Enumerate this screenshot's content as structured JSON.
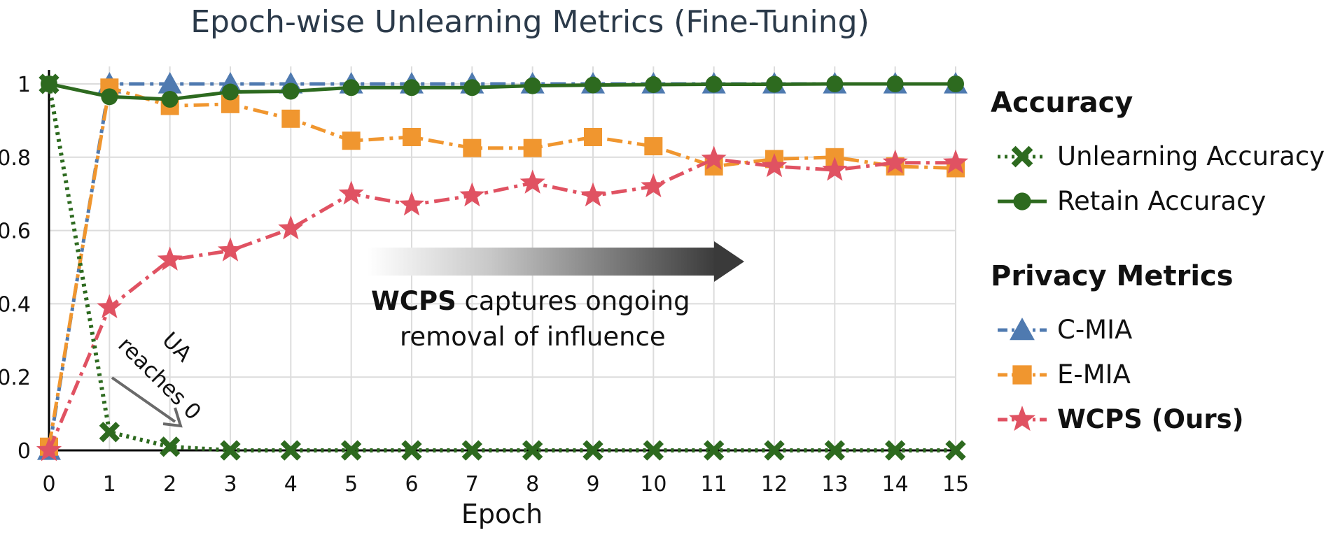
{
  "chart_data": {
    "type": "line",
    "title": "Epoch-wise Unlearning Metrics (Fine-Tuning)",
    "xlabel": "Epoch",
    "ylabel": "",
    "x": [
      0,
      1,
      2,
      3,
      4,
      5,
      6,
      7,
      8,
      9,
      10,
      11,
      12,
      13,
      14,
      15
    ],
    "x_tick_labels": [
      "0",
      "1",
      "2",
      "3",
      "4",
      "5",
      "6",
      "7",
      "8",
      "9",
      "10",
      "11",
      "12",
      "13",
      "14",
      "15"
    ],
    "y_tick_values": [
      0,
      0.2,
      0.4,
      0.6,
      0.8,
      1
    ],
    "y_tick_labels": [
      "0",
      "0.2",
      "0.4",
      "0.6",
      "0.8",
      "1"
    ],
    "xlim": [
      0,
      15
    ],
    "ylim": [
      0,
      1.1
    ],
    "grid": true,
    "legend_position": "right",
    "series": [
      {
        "name": "Unlearning Accuracy",
        "group": "Accuracy",
        "color": "#2d6a1f",
        "marker": "x",
        "line": "dotted",
        "values": [
          1.0,
          0.05,
          0.01,
          0.0,
          0.0,
          0.0,
          0.0,
          0.0,
          0.0,
          0.0,
          0.0,
          0.0,
          0.0,
          0.0,
          0.0,
          0.0
        ]
      },
      {
        "name": "Retain Accuracy",
        "group": "Accuracy",
        "color": "#2d6a1f",
        "marker": "circle",
        "line": "solid",
        "values": [
          1.0,
          0.965,
          0.958,
          0.978,
          0.98,
          0.99,
          0.99,
          0.99,
          0.995,
          0.997,
          0.998,
          0.999,
          0.999,
          1.0,
          1.0,
          1.0
        ]
      },
      {
        "name": "C-MIA",
        "group": "Privacy Metrics",
        "color": "#4f7ab0",
        "marker": "triangle",
        "line": "dashdot",
        "values": [
          0.0,
          1.0,
          1.0,
          1.0,
          1.0,
          1.0,
          1.0,
          1.0,
          1.0,
          1.0,
          1.0,
          1.0,
          1.0,
          1.0,
          1.0,
          1.0
        ]
      },
      {
        "name": "E-MIA",
        "group": "Privacy Metrics",
        "color": "#f0962f",
        "marker": "square",
        "line": "dashdot",
        "values": [
          0.01,
          0.99,
          0.94,
          0.945,
          0.905,
          0.845,
          0.855,
          0.825,
          0.825,
          0.855,
          0.83,
          0.775,
          0.795,
          0.8,
          0.775,
          0.77
        ]
      },
      {
        "name": "WCPS (Ours)",
        "group": "Privacy Metrics",
        "color": "#e05262",
        "marker": "star",
        "line": "dashdot",
        "values": [
          0.0,
          0.39,
          0.52,
          0.545,
          0.605,
          0.7,
          0.67,
          0.695,
          0.73,
          0.695,
          0.72,
          0.795,
          0.775,
          0.765,
          0.785,
          0.785
        ]
      }
    ],
    "legend_groups": [
      {
        "title": "Accuracy",
        "items": [
          "Unlearning Accuracy",
          "Retain Accuracy"
        ]
      },
      {
        "title": "Privacy Metrics",
        "items": [
          "C-MIA",
          "E-MIA",
          "WCPS (Ours)"
        ]
      }
    ],
    "annotations": {
      "main_bold": "WCPS",
      "main_rest": " captures ongoing",
      "main_line2": "removal of influence",
      "ua_line1": "UA",
      "ua_line2": "reaches 0"
    }
  }
}
